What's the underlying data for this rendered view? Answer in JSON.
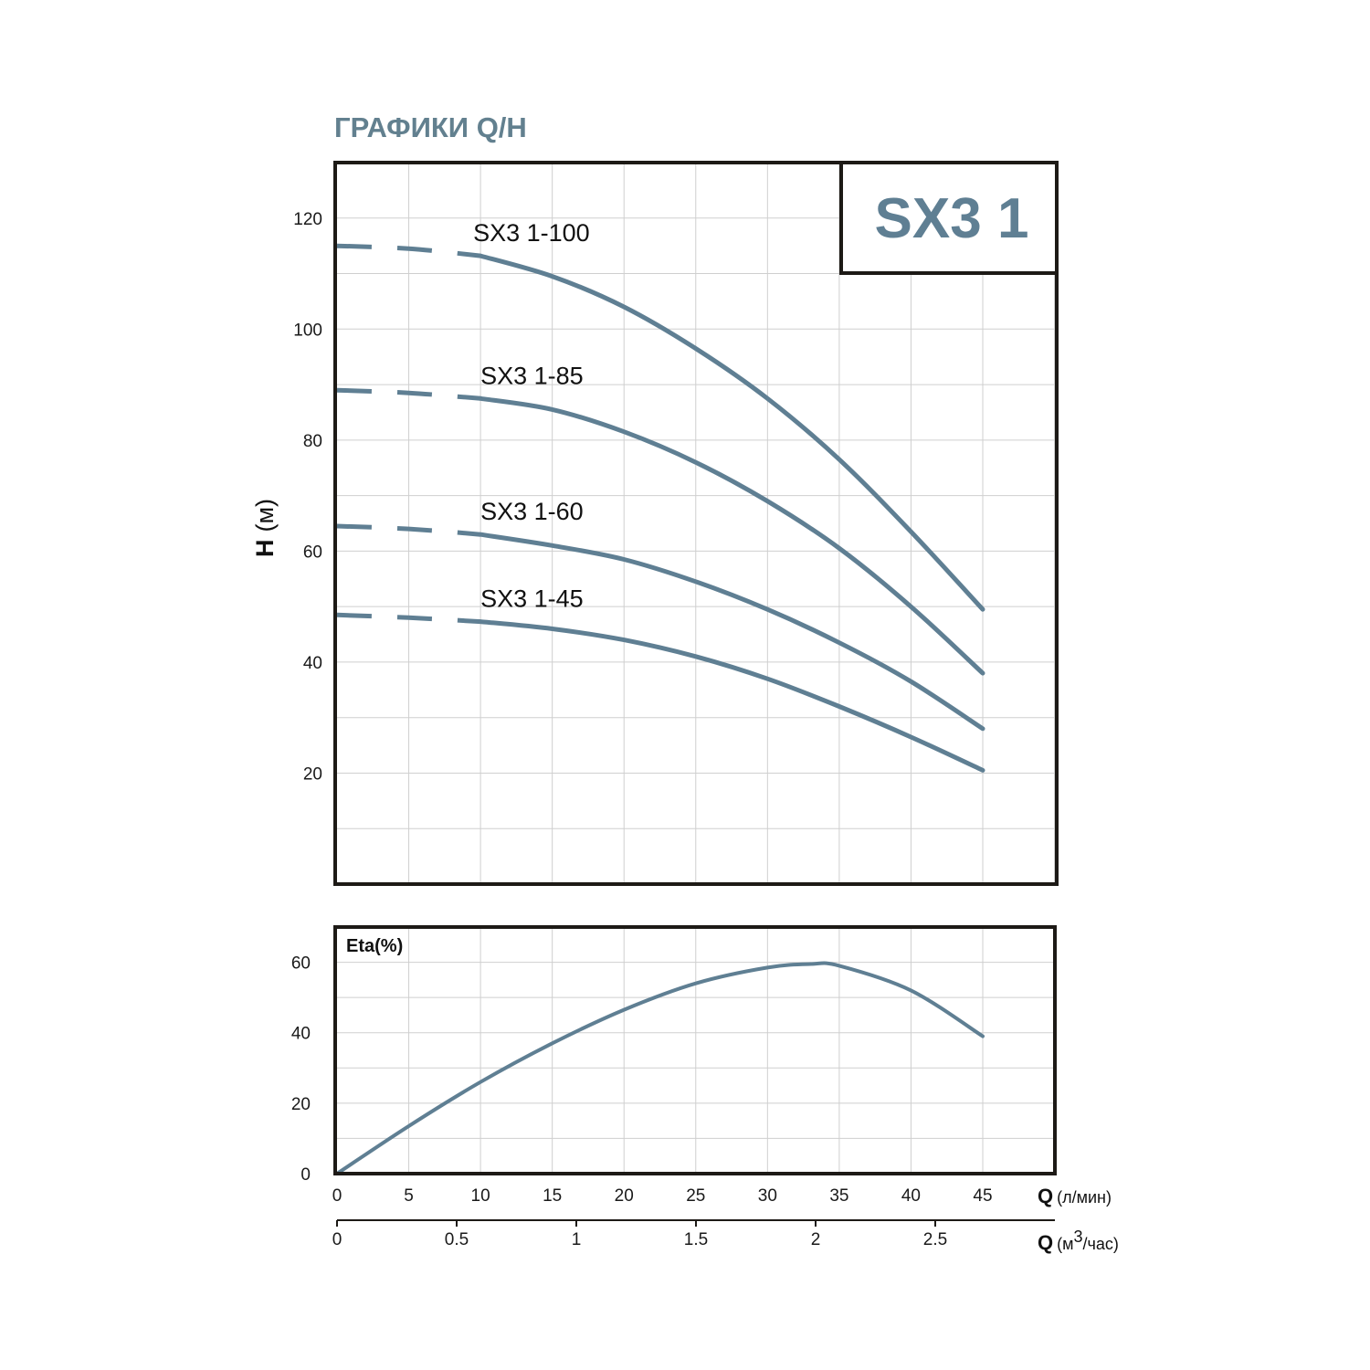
{
  "header": {
    "title": "ГРАФИКИ Q/H"
  },
  "badge": {
    "text": "SX3 1"
  },
  "colors": {
    "curve": "#5f7f93",
    "frame": "#1d1a16",
    "grid": "#cfcfcf",
    "title": "#62808f"
  },
  "chart_data": [
    {
      "type": "line",
      "title": "",
      "ylabel_bold": "H",
      "ylabel_unit": "(м)",
      "xlabel": "",
      "xlim": [
        0,
        50
      ],
      "ylim": [
        0,
        130
      ],
      "yticks": [
        20,
        40,
        60,
        80,
        100,
        120
      ],
      "grid": true,
      "dashed_segment_x": [
        0,
        10
      ],
      "series": [
        {
          "name": "SX3 1-100",
          "x": [
            0,
            5,
            10,
            15,
            20,
            25,
            30,
            35,
            40,
            45
          ],
          "y": [
            115,
            114.5,
            113.2,
            109.5,
            104,
            96.5,
            87.5,
            76.5,
            63.5,
            49.5
          ]
        },
        {
          "name": "SX3 1-85",
          "x": [
            0,
            5,
            10,
            15,
            20,
            25,
            30,
            35,
            40,
            45
          ],
          "y": [
            89,
            88.5,
            87.5,
            85.5,
            81.5,
            76,
            69,
            60.5,
            50,
            38
          ]
        },
        {
          "name": "SX3 1-60",
          "x": [
            0,
            5,
            10,
            15,
            20,
            25,
            30,
            35,
            40,
            45
          ],
          "y": [
            64.5,
            64,
            63,
            61,
            58.5,
            54.5,
            49.5,
            43.5,
            36.5,
            28
          ]
        },
        {
          "name": "SX3 1-45",
          "x": [
            0,
            5,
            10,
            15,
            20,
            25,
            30,
            35,
            40,
            45
          ],
          "y": [
            48.5,
            48,
            47.3,
            46,
            44,
            41,
            37,
            32,
            26.5,
            20.5
          ]
        }
      ]
    },
    {
      "type": "line",
      "title": "",
      "ylabel": "Eta(%)",
      "xlim": [
        0,
        50
      ],
      "ylim": [
        0,
        70
      ],
      "yticks": [
        0,
        20,
        40,
        60
      ],
      "grid": true,
      "series": [
        {
          "name": "",
          "x": [
            0,
            5,
            10,
            15,
            20,
            25,
            30,
            33,
            35,
            40,
            45
          ],
          "y": [
            0,
            13.5,
            26,
            37,
            46.5,
            54,
            58.5,
            59.5,
            59,
            52,
            39
          ]
        }
      ]
    }
  ],
  "x_axis_primary": {
    "symbol": "Q",
    "unit": "(л/мин)",
    "ticks": [
      "0",
      "5",
      "10",
      "15",
      "20",
      "25",
      "30",
      "35",
      "40",
      "45"
    ]
  },
  "x_axis_secondary": {
    "symbol": "Q",
    "unit_prefix": "(м",
    "unit_sup": "3",
    "unit_suffix": "/час)",
    "ticks": [
      "0",
      "0.5",
      "1",
      "1.5",
      "2",
      "2.5"
    ],
    "tick_values": [
      0,
      0.5,
      1,
      1.5,
      2,
      2.5
    ],
    "max": 3
  }
}
